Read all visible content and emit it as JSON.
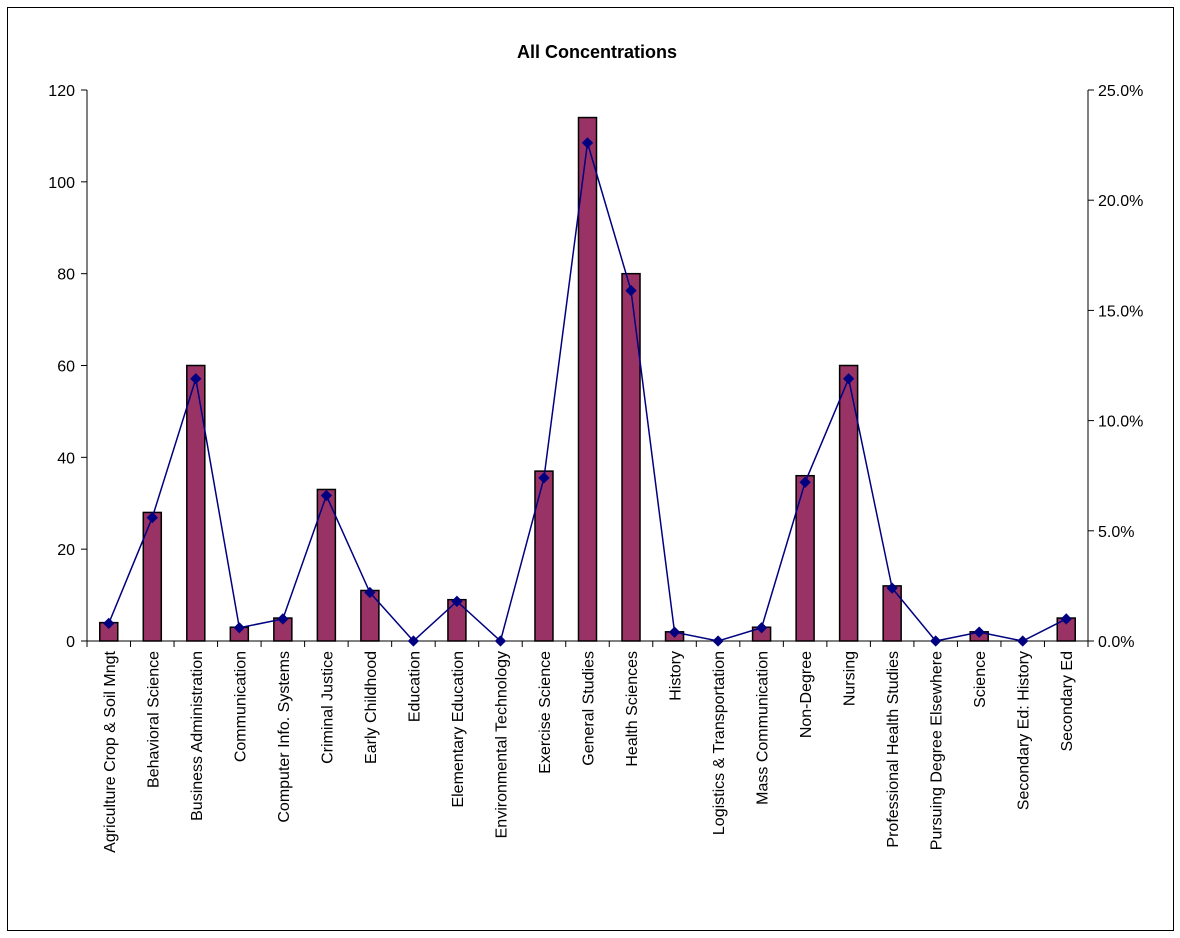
{
  "chart_data": {
    "type": "bar",
    "title": "All Concentrations",
    "xlabel": "",
    "ylabel": "",
    "categories": [
      "Agriculture Crop & Soil Mngt",
      "Behavioral Science",
      "Business Administration",
      "Communication",
      "Computer Info. Systems",
      "Criminal Justice",
      "Early Childhood",
      "Education",
      "Elementary Education",
      "Environmental Technology",
      "Exercise Science",
      "General Studies",
      "Health Sciences",
      "History",
      "Logistics & Transportation",
      "Mass Communication",
      "Non-Degree",
      "Nursing",
      "Professional Health Studies",
      "Pursuing Degree Elsewhere",
      "Science",
      "Secondary Ed: History",
      "Secondary Ed"
    ],
    "series": [
      {
        "type": "bar",
        "axis": "left",
        "values": [
          4,
          28,
          60,
          3,
          5,
          33,
          11,
          0,
          9,
          0,
          37,
          114,
          80,
          2,
          0,
          3,
          36,
          60,
          12,
          0,
          2,
          0,
          5
        ]
      },
      {
        "type": "line",
        "axis": "right",
        "values": [
          0.8,
          5.6,
          11.9,
          0.6,
          1.0,
          6.6,
          2.2,
          0.0,
          1.8,
          0.0,
          7.4,
          22.6,
          15.9,
          0.4,
          0.0,
          0.6,
          7.2,
          11.9,
          2.4,
          0.0,
          0.4,
          0.0,
          1.0
        ]
      }
    ],
    "ylim": [
      0,
      120
    ],
    "yticks": [
      "0",
      "20",
      "40",
      "60",
      "80",
      "100",
      "120"
    ],
    "y2lim": [
      0,
      25
    ],
    "y2ticks": [
      "0.0%",
      "5.0%",
      "10.0%",
      "15.0%",
      "20.0%",
      "25.0%"
    ],
    "grid": false,
    "legend": "none",
    "colors": {
      "bar_fill": "#993366",
      "bar_stroke": "#000000",
      "line": "#000080",
      "marker": "#000080"
    }
  }
}
